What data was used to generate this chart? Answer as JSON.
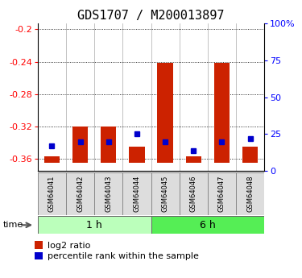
{
  "title": "GDS1707 / M200013897",
  "samples": [
    "GSM64041",
    "GSM64042",
    "GSM64043",
    "GSM64044",
    "GSM64045",
    "GSM64046",
    "GSM64047",
    "GSM64048"
  ],
  "log2_ratio": [
    -0.357,
    -0.32,
    -0.32,
    -0.345,
    -0.241,
    -0.357,
    -0.241,
    -0.345
  ],
  "log2_base": -0.365,
  "percentile_rank": [
    17,
    20,
    20,
    25,
    20,
    14,
    20,
    22
  ],
  "groups": [
    {
      "label": "1 h",
      "start": 0,
      "end": 4,
      "color": "#bbffbb"
    },
    {
      "label": "6 h",
      "start": 4,
      "end": 8,
      "color": "#55ee55"
    }
  ],
  "ylim_left": [
    -0.375,
    -0.193
  ],
  "ylim_right": [
    0,
    100
  ],
  "yticks_left": [
    -0.36,
    -0.32,
    -0.28,
    -0.24,
    -0.2
  ],
  "ytick_labels_left": [
    "-0.36",
    "-0.32",
    "-0.28",
    "-0.24",
    "-0.2"
  ],
  "yticks_right": [
    0,
    25,
    50,
    75,
    100
  ],
  "ytick_labels_right": [
    "0",
    "25",
    "50",
    "75",
    "100%"
  ],
  "red_color": "#cc2200",
  "blue_color": "#0000cc",
  "bar_width": 0.55,
  "legend_labels": [
    "log2 ratio",
    "percentile rank within the sample"
  ],
  "time_label": "time",
  "title_fontsize": 11,
  "tick_fontsize": 8,
  "sample_fontsize": 6,
  "group_fontsize": 9,
  "legend_fontsize": 8
}
